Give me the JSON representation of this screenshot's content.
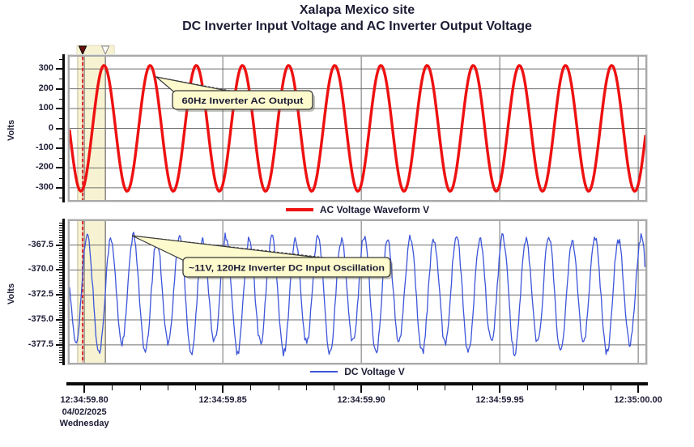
{
  "title": {
    "line1": "Xalapa Mexico site",
    "line2": "DC Inverter Input Voltage and AC Inverter Output Voltage"
  },
  "chart_data": [
    {
      "type": "line",
      "panel": "top",
      "description": "AC Inverter Output Voltage",
      "ylabel": "Volts",
      "legend_label": "AC Voltage Waveform V",
      "annotation": "60Hz Inverter AC Output",
      "series": [
        {
          "name": "AC Voltage Waveform V",
          "color": "#ee1111",
          "waveform": "sine",
          "frequency_hz": 60,
          "amplitude_v": 318,
          "mean_v": 0,
          "peak_time_s": 59.8071,
          "cycles_visible": 12
        }
      ],
      "ylim": [
        -362,
        362
      ],
      "y_ticks_v": [
        300,
        200,
        100,
        0,
        -100,
        -200,
        -300
      ],
      "y_tick_labels": [
        "300",
        "200",
        "100",
        "0",
        "-100",
        "-200",
        "-300"
      ],
      "y_minor_step_v": 50,
      "grid": true,
      "legend_position": "bottom"
    },
    {
      "type": "line",
      "panel": "bottom",
      "description": "DC Inverter Input Voltage",
      "ylabel": "Volts",
      "legend_label": "DC Voltage V",
      "annotation": "~11V, 120Hz Inverter DC Input Oscillation",
      "series": [
        {
          "name": "DC Voltage V",
          "color": "#3c55d9",
          "waveform": "noisy-sine",
          "frequency_hz": 120,
          "amplitude_v": 5.5,
          "mean_v": -372.3,
          "peak_time_s": 59.80113,
          "ripple_60hz_v": 0.55,
          "noise_v": 0.4,
          "peak_to_peak_v": 11
        }
      ],
      "ylim": [
        -379.3,
        -365.1
      ],
      "y_ticks_v": [
        -367.5,
        -370.0,
        -372.5,
        -375.0,
        -377.5
      ],
      "y_tick_labels": [
        "-367.5",
        "-370.0",
        "-372.5",
        "-375.0",
        "-377.5"
      ],
      "y_minor_step_v": 0.25,
      "grid": true,
      "legend_position": "bottom"
    }
  ],
  "time_axis": {
    "range_s": [
      59.7947,
      60.0026
    ],
    "tick_s": [
      59.8,
      59.85,
      59.9,
      59.95,
      60.0
    ],
    "tick_labels": [
      "12:34:59.80",
      "12:34:59.85",
      "12:34:59.90",
      "12:34:59.95",
      "12:35:00.00"
    ],
    "minor_step_s": 0.01,
    "date": "04/02/2025",
    "weekday": "Wednesday"
  },
  "selection": {
    "start_s": 59.7976,
    "end_s": 59.8076,
    "cursor_s": 59.7994
  },
  "colors": {
    "text": "#1c1c35",
    "grid": "#6f6f6f",
    "axis": "#0a0a0a",
    "band": "#f7f3d2",
    "cursor": "#d92c2c",
    "cursor_under": "#f2b7a8",
    "callout_fill": "#fdfacd",
    "callout_border": "#3a3a3a",
    "marker_filled": "#6f0d10",
    "marker_open_border": "#8a8a8a",
    "plot_border": "#a9a9a9"
  }
}
